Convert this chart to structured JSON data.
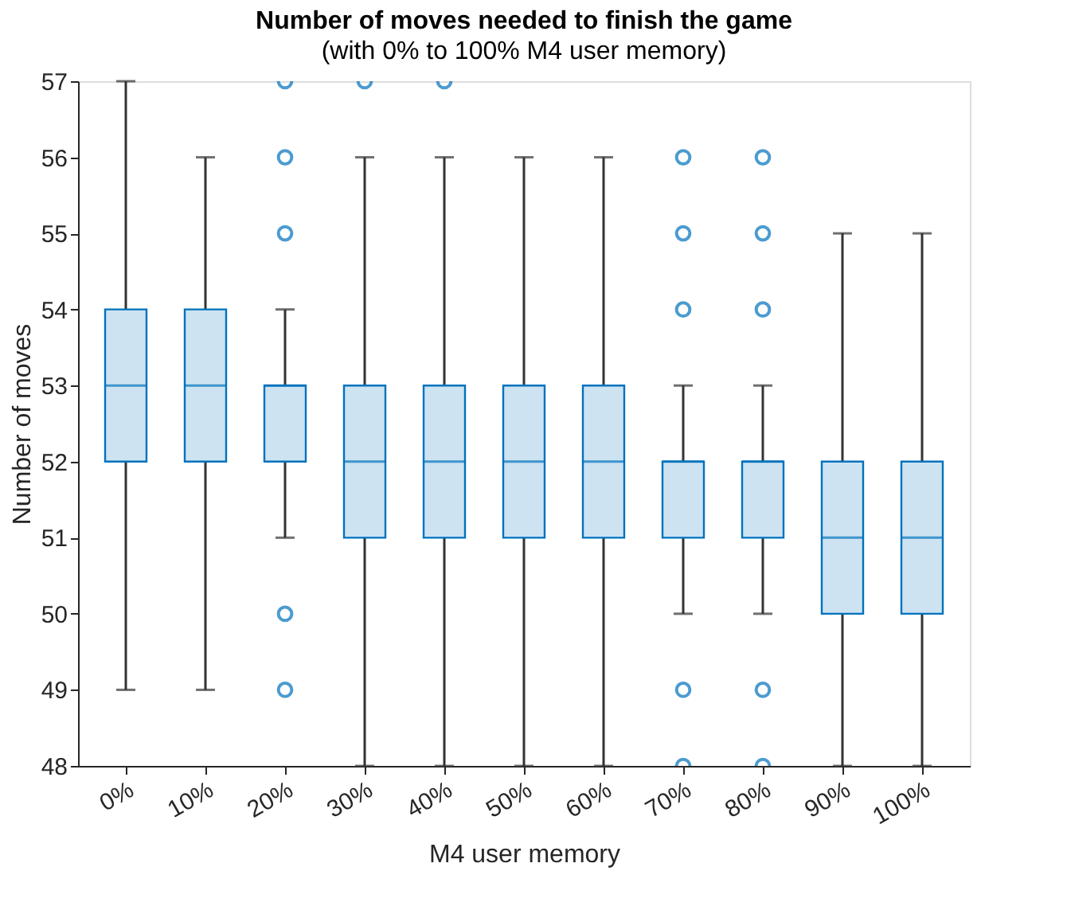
{
  "chart_data": {
    "type": "box",
    "title": "Number of moves needed to finish the game",
    "subtitle": "(with 0% to 100% M4 user memory)",
    "xlabel": "M4 user memory",
    "ylabel": "Number of moves",
    "categories": [
      "0%",
      "10%",
      "20%",
      "30%",
      "40%",
      "50%",
      "60%",
      "70%",
      "80%",
      "90%",
      "100%"
    ],
    "color": "#0072bd",
    "ylim": [
      48,
      57
    ],
    "yticks": [
      48,
      49,
      50,
      51,
      52,
      53,
      54,
      55,
      56,
      57
    ],
    "grid": false,
    "boxes": [
      {
        "low": 49,
        "q1": 52,
        "median": 53,
        "q3": 54,
        "high": 57
      },
      {
        "low": 49,
        "q1": 52,
        "median": 53,
        "q3": 54,
        "high": 56
      },
      {
        "low": 51,
        "q1": 52,
        "median": 53,
        "q3": 53,
        "high": 54,
        "outliers": [
          55,
          56,
          57,
          50,
          49
        ]
      },
      {
        "low": 48,
        "q1": 51,
        "median": 52,
        "q3": 53,
        "high": 56,
        "outliers": [
          57
        ]
      },
      {
        "low": 48,
        "q1": 51,
        "median": 52,
        "q3": 53,
        "high": 56,
        "outliers": [
          57
        ]
      },
      {
        "low": 48,
        "q1": 51,
        "median": 52,
        "q3": 53,
        "high": 56
      },
      {
        "low": 48,
        "q1": 51,
        "median": 52,
        "q3": 53,
        "high": 56
      },
      {
        "low": 50,
        "q1": 51,
        "median": 52,
        "q3": 52,
        "high": 53,
        "outliers": [
          54,
          55,
          56,
          49,
          48
        ]
      },
      {
        "low": 50,
        "q1": 51,
        "median": 52,
        "q3": 52,
        "high": 53,
        "outliers": [
          54,
          55,
          56,
          49,
          48
        ]
      },
      {
        "low": 48,
        "q1": 50,
        "median": 51,
        "q3": 52,
        "high": 55
      },
      {
        "low": 48,
        "q1": 50,
        "median": 51,
        "q3": 52,
        "high": 55
      }
    ]
  }
}
